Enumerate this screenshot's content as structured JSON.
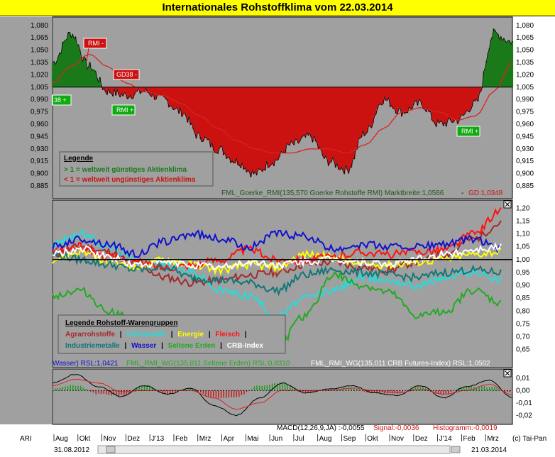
{
  "title": "Internationales Rohstoffklima vom 22.03.2014",
  "colors": {
    "panel_bg": "#a0a0a0",
    "positive": "#1a7a1a",
    "negative": "#cc1111",
    "agrar": "#a52a2a",
    "edelmetalle": "#22dddd",
    "energie": "#ffff00",
    "fleisch": "#ff1111",
    "industriemetalle": "#117777",
    "wasser": "#1111cc",
    "seltene_erden": "#22aa22",
    "crb": "#ffffff"
  },
  "panel1": {
    "yticks": [
      "1,080",
      "1,065",
      "1,050",
      "1,035",
      "1,020",
      "1,005",
      "0,990",
      "0,975",
      "0,960",
      "0,945",
      "0,930",
      "0,915",
      "0,900",
      "0,885"
    ],
    "baseline_label": "1,005",
    "legend": {
      "title": "Legende",
      "line1": "> 1 = weltweit günstiges  Aktienklima",
      "line2": "< 1 = weltweit  ungünstiges  Aktienklima"
    },
    "status_left": "FML_Goerke_RMI(135,570 Goerke Rohstoffe RMI) Marktbreite:1,0586",
    "status_sep": " - ",
    "status_right": "GD:1,0348",
    "signals": {
      "rmi_minus": "RMI -",
      "gd38_minus": "GD38 -",
      "gd38_plus_cut": "38 +",
      "rmi_plus": "RMI +"
    }
  },
  "panel2": {
    "yticks": [
      "1,20",
      "1,15",
      "1,10",
      "1,05",
      "1,00",
      "0,95",
      "0,90",
      "0,85",
      "0,80",
      "0,75",
      "0,70",
      "0,65"
    ],
    "legend": {
      "title": "Legende Rohstoff-Warengruppen",
      "agrar": "Agrarrohstoffe",
      "edel": "Edelmetalle",
      "energie": "Energie",
      "fleisch": "Fleisch",
      "industrie": "Industriemetalle",
      "wasser": "Wasser",
      "seltene": "Seltene Erden",
      "crb": "CRB-Index",
      "sep": "|"
    },
    "status_1": "Wasser) RSL:1,0421",
    "status_2": "FML_RMI_WG(135,011 Seltene Erden) RSL:0,8310",
    "status_3": "FML_RMI_WG(135,011 CRB Futures-Index) RSL:1,0502"
  },
  "panel3": {
    "yticks": [
      "0,01",
      "0,00",
      "-0,01",
      "-0,02"
    ],
    "status_a": "MACD(12,26,9,JA) :-0,0055",
    "status_b": "Signal:-0,0036",
    "status_c": "Histogramm:-0,0019"
  },
  "footer": {
    "ari": "ARI",
    "months": [
      "Aug",
      "Okt",
      "Nov",
      "Dez",
      "J'13",
      "Feb",
      "Mrz",
      "Apr",
      "Mai",
      "Jun",
      "Jul",
      "Aug",
      "Sep",
      "Okt",
      "Nov",
      "Dez",
      "J'14",
      "Feb",
      "Mrz"
    ],
    "copyright": "(c) Tai-Pan",
    "date_start": "31.08.2012",
    "date_end": "21.03.2014"
  },
  "chart_data": [
    {
      "type": "area",
      "title": "",
      "x_range": [
        "31.08.2012",
        "21.03.2014"
      ],
      "ylim": [
        0.885,
        1.085
      ],
      "baseline": 1.005,
      "x": [
        0,
        4,
        8,
        12,
        16,
        20,
        24,
        28,
        32,
        36,
        40,
        44,
        48,
        52,
        56,
        60,
        64,
        68,
        72,
        76,
        80,
        84,
        88,
        92,
        96,
        100
      ],
      "series": [
        {
          "name": "",
          "values": [
            1.035,
            1.07,
            1.03,
            1.0,
            0.995,
            1.0,
            0.99,
            0.975,
            0.945,
            0.93,
            0.915,
            0.9,
            0.915,
            0.935,
            0.945,
            0.915,
            0.905,
            0.95,
            0.99,
            0.975,
            0.985,
            0.96,
            0.965,
            0.985,
            1.07,
            1.06
          ]
        },
        {
          "name": "",
          "values": [
            1.01,
            1.03,
            1.045,
            1.03,
            1.01,
            1.0,
            0.995,
            0.985,
            0.97,
            0.955,
            0.94,
            0.93,
            0.925,
            0.925,
            0.93,
            0.93,
            0.925,
            0.935,
            0.955,
            0.975,
            0.98,
            0.975,
            0.965,
            0.97,
            1.0,
            1.035
          ]
        }
      ],
      "grid": false
    },
    {
      "type": "line",
      "title": "",
      "ylim": [
        0.63,
        1.22
      ],
      "baseline": 1.0,
      "x": [
        0,
        6.25,
        12.5,
        18.75,
        25,
        31.25,
        37.5,
        43.75,
        50,
        56.25,
        62.5,
        68.75,
        75,
        81.25,
        87.5,
        93.75,
        100
      ],
      "series": [
        {
          "name": "Agrarrohstoffe",
          "values": [
            1.02,
            1.05,
            1.03,
            0.98,
            0.93,
            0.91,
            0.92,
            0.94,
            0.95,
            0.98,
            0.99,
            0.97,
            0.96,
            0.99,
            1.02,
            1.08,
            1.14
          ]
        },
        {
          "name": "Edelmetalle",
          "values": [
            1.06,
            1.1,
            1.05,
            1.0,
            0.98,
            0.95,
            0.88,
            0.86,
            0.78,
            0.85,
            0.88,
            0.93,
            0.92,
            0.9,
            0.93,
            0.95,
            0.92
          ]
        },
        {
          "name": "Energie",
          "values": [
            1.0,
            1.03,
            0.99,
            0.97,
            1.0,
            0.98,
            0.96,
            0.98,
            0.97,
            1.02,
            1.01,
            0.98,
            0.98,
            0.99,
            1.0,
            1.02,
            1.03
          ]
        },
        {
          "name": "Fleisch",
          "values": [
            1.03,
            1.05,
            1.01,
            0.99,
            0.97,
            0.98,
            1.0,
            1.04,
            1.0,
            1.0,
            1.01,
            1.03,
            1.02,
            1.03,
            1.04,
            1.1,
            1.19
          ]
        },
        {
          "name": "Industriemetalle",
          "values": [
            1.02,
            1.0,
            0.98,
            0.96,
            0.97,
            0.93,
            0.92,
            0.91,
            0.88,
            0.94,
            0.96,
            0.95,
            0.94,
            0.93,
            0.95,
            0.96,
            0.95
          ]
        },
        {
          "name": "Wasser",
          "values": [
            1.05,
            1.08,
            1.06,
            1.02,
            1.07,
            1.1,
            1.08,
            1.05,
            1.1,
            1.09,
            1.04,
            1.06,
            1.05,
            1.05,
            1.06,
            1.08,
            1.04
          ]
        },
        {
          "name": "Seltene Erden",
          "values": [
            0.86,
            0.88,
            0.8,
            0.76,
            0.74,
            0.72,
            0.69,
            0.66,
            0.66,
            0.78,
            0.94,
            0.9,
            0.87,
            0.78,
            0.8,
            0.88,
            0.83
          ]
        },
        {
          "name": "CRB-Index",
          "values": [
            1.02,
            1.04,
            1.01,
            0.98,
            0.99,
            0.98,
            0.97,
            0.99,
            0.98,
            0.99,
            1.0,
            0.99,
            0.98,
            1.0,
            1.02,
            1.04,
            1.05
          ]
        }
      ],
      "grid": false
    },
    {
      "type": "bar",
      "title": "",
      "ylim": [
        -0.025,
        0.015
      ],
      "x": [
        0,
        5,
        10,
        15,
        20,
        25,
        30,
        35,
        40,
        45,
        50,
        55,
        60,
        65,
        70,
        75,
        80,
        85,
        90,
        95,
        100
      ],
      "series": [
        {
          "name": "MACD",
          "values": [
            0.006,
            0.013,
            0.003,
            -0.005,
            0.004,
            -0.003,
            0.002,
            -0.012,
            -0.02,
            -0.006,
            0.006,
            -0.002,
            0.001,
            0.004,
            -0.002,
            -0.004,
            0.004,
            -0.006,
            0.003,
            0.008,
            -0.0055
          ]
        },
        {
          "name": "Signal",
          "values": [
            0.004,
            0.009,
            0.006,
            -0.001,
            0.0,
            0.0,
            0.0,
            -0.006,
            -0.015,
            -0.01,
            0.0,
            0.0,
            0.0,
            0.002,
            0.0,
            -0.002,
            0.001,
            -0.003,
            0.0,
            0.005,
            -0.0036
          ]
        },
        {
          "name": "Histogramm",
          "values": [
            0.002,
            0.004,
            -0.003,
            -0.004,
            0.004,
            -0.003,
            0.002,
            -0.006,
            -0.005,
            0.004,
            0.006,
            -0.002,
            0.001,
            0.002,
            -0.002,
            -0.002,
            0.003,
            -0.003,
            0.003,
            0.003,
            -0.0019
          ]
        }
      ],
      "grid": false
    }
  ]
}
